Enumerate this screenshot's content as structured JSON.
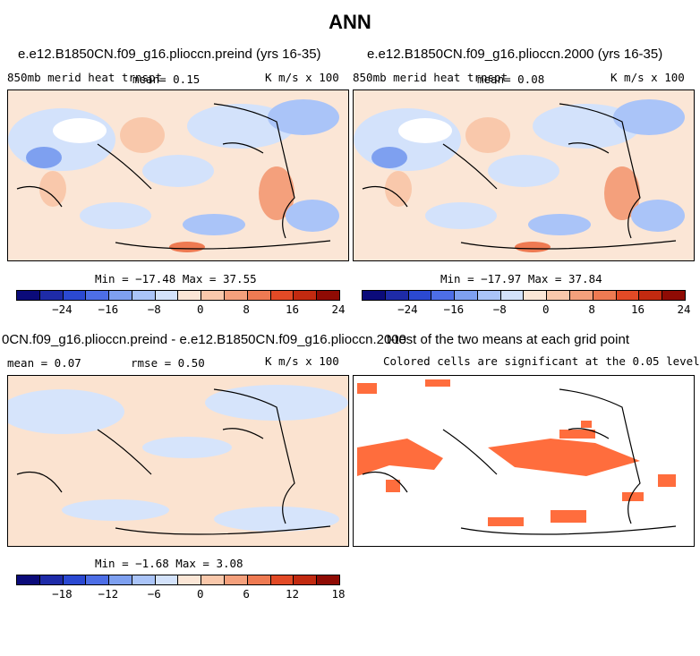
{
  "title": "ANN",
  "panels": [
    {
      "title": "e.e12.B1850CN.f09_g16.plioccn.preind (yrs 16-35)",
      "left": "850mb merid heat trnspt",
      "center": "mean=   0.15",
      "right": "K m/s x 100",
      "minmax": "Min = −17.48 Max =  37.55"
    },
    {
      "title": "e.e12.B1850CN.f09_g16.plioccn.2000 (yrs 16-35)",
      "left": "850mb merid heat trnspt",
      "center": "mean=   0.08",
      "right": "K m/s x 100",
      "minmax": "Min = −17.97 Max =  37.84"
    },
    {
      "title": "0CN.f09_g16.plioccn.preind - e.e12.B1850CN.f09_g16.plioccn.2000",
      "left": "mean =   0.07",
      "center": "rmse =   0.50",
      "right": "K m/s x 100",
      "minmax": "Min =  −1.68 Max =   3.08"
    },
    {
      "title": "t-test of the two means at each grid point",
      "subtitle": "Colored cells are significant at the 0.05 level"
    }
  ],
  "colorbars": {
    "top_ticks": [
      "−24",
      "−16",
      "−8",
      "0",
      "8",
      "16",
      "24"
    ],
    "diff_ticks": [
      "−18",
      "−12",
      "−6",
      "0",
      "6",
      "12",
      "18"
    ],
    "colors": [
      "#0b0b7a",
      "#1e2ba8",
      "#2b49d2",
      "#4d6ee6",
      "#7ea0f0",
      "#aac4f8",
      "#d3e2fb",
      "#fbe6d6",
      "#f9c8ab",
      "#f4a07c",
      "#ee7a52",
      "#e24a26",
      "#c22a10",
      "#8f0b04"
    ]
  },
  "legend_colors": {
    "significant": "#ff6d3d",
    "positive": "#fbe3d0",
    "negative": "#d6e4fb"
  }
}
